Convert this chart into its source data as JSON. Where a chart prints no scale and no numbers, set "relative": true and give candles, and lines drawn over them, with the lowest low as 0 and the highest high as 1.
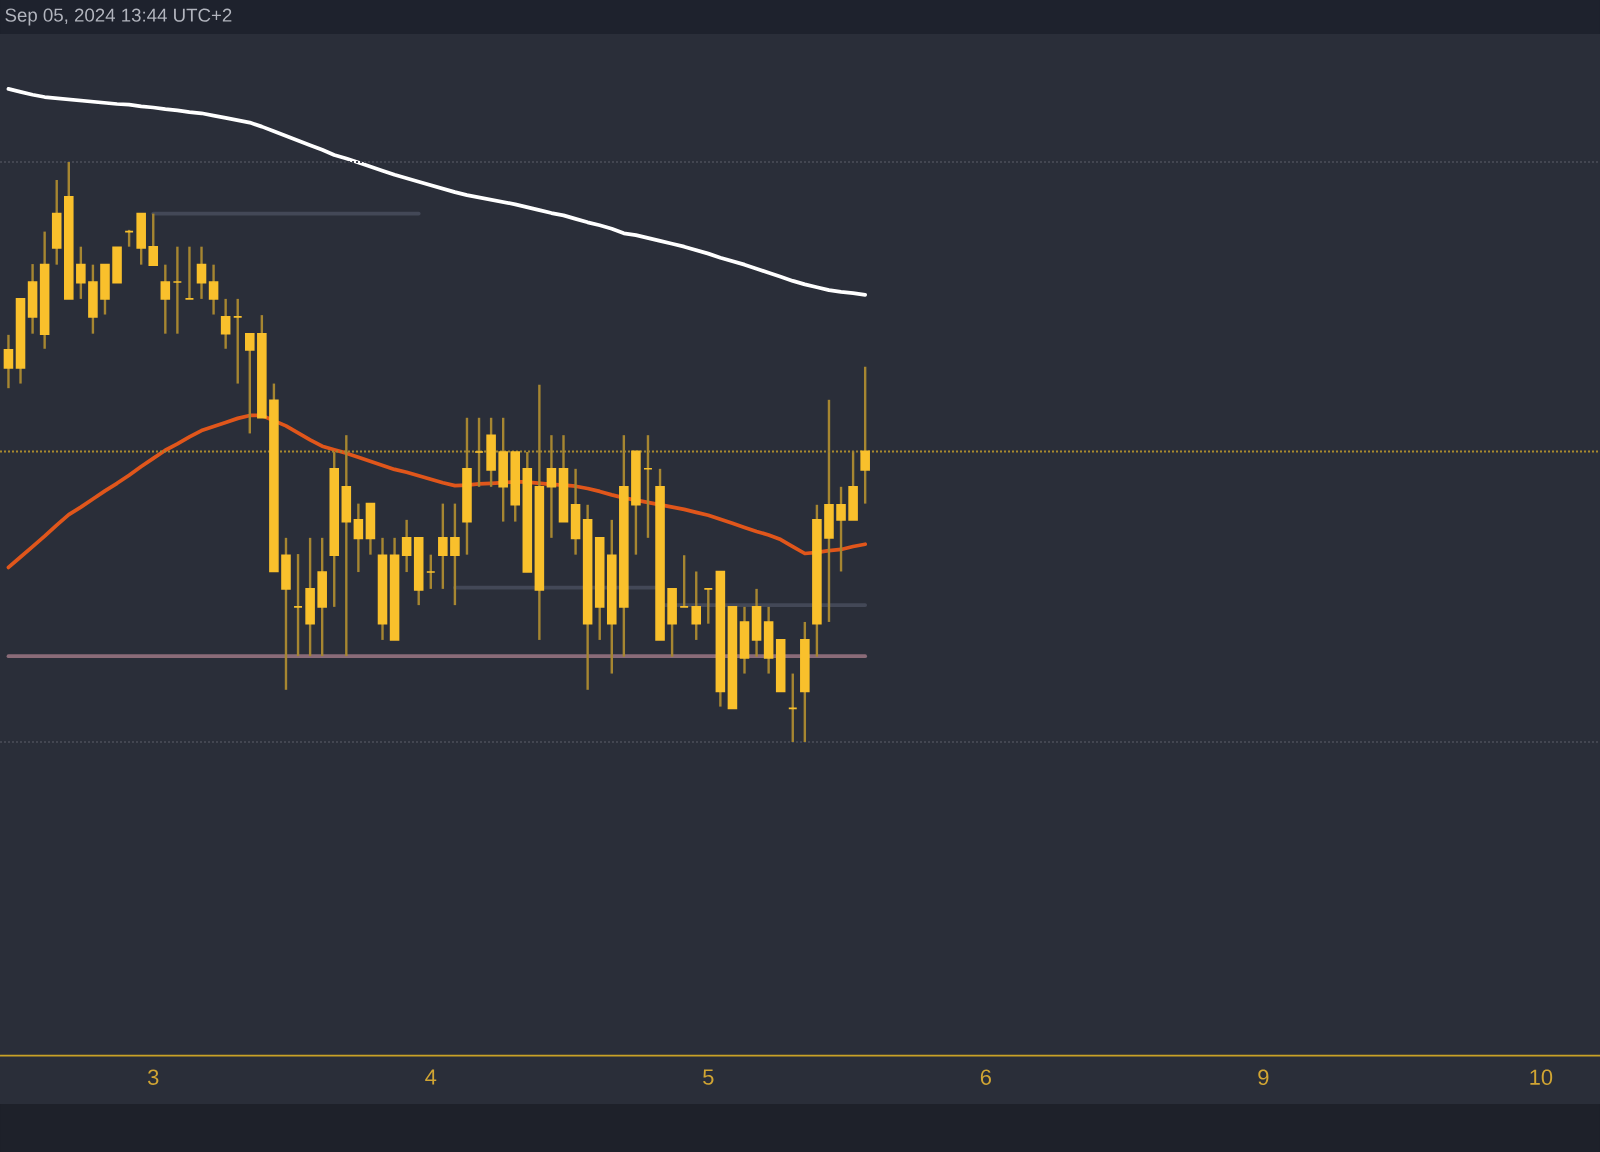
{
  "chart_data": {
    "type": "candlestick",
    "relative": true,
    "annotations": [
      "Sep 05, 2024 13:44 UTC+2"
    ],
    "color": "#f9c02c",
    "categories": [
      null,
      null,
      null,
      null,
      null,
      null,
      null,
      null,
      null,
      null,
      null,
      null,
      "3",
      null,
      null,
      null,
      null,
      null,
      null,
      null,
      null,
      null,
      null,
      null,
      null,
      null,
      null,
      null,
      null,
      null,
      null,
      null,
      null,
      null,
      null,
      "4",
      null,
      null,
      null,
      null,
      null,
      null,
      null,
      null,
      null,
      null,
      null,
      null,
      null,
      null,
      null,
      null,
      null,
      null,
      null,
      null,
      null,
      null,
      "5",
      null,
      null,
      null,
      null,
      null,
      null,
      null,
      null,
      null,
      null,
      null,
      null,
      null,
      null,
      null,
      null,
      null,
      null,
      null,
      null,
      null,
      null,
      "6",
      null,
      null,
      null,
      null,
      null,
      null,
      null,
      null,
      null,
      null,
      null,
      null,
      null,
      null,
      null,
      null,
      null,
      null,
      null,
      null,
      null,
      null,
      "9",
      null,
      null,
      null,
      null,
      null,
      null,
      null,
      null,
      null,
      null,
      null,
      null,
      null,
      null,
      null,
      null,
      null,
      null,
      null,
      null,
      null,
      null,
      "10",
      null,
      null,
      null,
      null
    ],
    "ohlc": [
      [
        0.645,
        0.702,
        0.61,
        0.676
      ],
      [
        0.645,
        0.764,
        0.618,
        0.764
      ],
      [
        0.733,
        0.824,
        0.704,
        0.793
      ],
      [
        0.703,
        0.88,
        0.678,
        0.823
      ],
      [
        0.852,
        0.969,
        0.823,
        0.911
      ],
      [
        0.764,
        1.0,
        0.764,
        0.94
      ],
      [
        0.792,
        0.854,
        0.764,
        0.823
      ],
      [
        0.733,
        0.823,
        0.704,
        0.793
      ],
      [
        0.764,
        0.823,
        0.737,
        0.823
      ],
      [
        0.792,
        0.853,
        0.792,
        0.853
      ],
      [
        0.88,
        0.883,
        0.854,
        0.88
      ],
      [
        0.852,
        0.911,
        0.823,
        0.911
      ],
      [
        0.822,
        0.911,
        0.822,
        0.854
      ],
      [
        0.764,
        0.823,
        0.704,
        0.793
      ],
      [
        0.793,
        0.854,
        0.704,
        0.793
      ],
      [
        0.764,
        0.854,
        0.764,
        0.764
      ],
      [
        0.792,
        0.854,
        0.764,
        0.823
      ],
      [
        0.764,
        0.823,
        0.737,
        0.793
      ],
      [
        0.704,
        0.764,
        0.678,
        0.733
      ],
      [
        0.733,
        0.764,
        0.618,
        0.733
      ],
      [
        0.676,
        0.704,
        0.532,
        0.704
      ],
      [
        0.559,
        0.736,
        0.559,
        0.704
      ],
      [
        0.294,
        0.618,
        0.294,
        0.589
      ],
      [
        0.264,
        0.352,
        0.09,
        0.322
      ],
      [
        0.233,
        0.324,
        0.148,
        0.233
      ],
      [
        0.204,
        0.352,
        0.148,
        0.264
      ],
      [
        0.233,
        0.352,
        0.148,
        0.293
      ],
      [
        0.322,
        0.5,
        0.233,
        0.471
      ],
      [
        0.38,
        0.529,
        0.148,
        0.44
      ],
      [
        0.351,
        0.411,
        0.293,
        0.383
      ],
      [
        0.351,
        0.411,
        0.323,
        0.411
      ],
      [
        0.204,
        0.352,
        0.176,
        0.322
      ],
      [
        0.176,
        0.352,
        0.176,
        0.322
      ],
      [
        0.322,
        0.383,
        0.293,
        0.352
      ],
      [
        0.262,
        0.352,
        0.236,
        0.352
      ],
      [
        0.293,
        0.323,
        0.264,
        0.293
      ],
      [
        0.322,
        0.411,
        0.264,
        0.352
      ],
      [
        0.322,
        0.411,
        0.236,
        0.352
      ],
      [
        0.38,
        0.559,
        0.323,
        0.471
      ],
      [
        0.5,
        0.559,
        0.44,
        0.5
      ],
      [
        0.469,
        0.559,
        0.44,
        0.529
      ],
      [
        0.44,
        0.559,
        0.38,
        0.5
      ],
      [
        0.409,
        0.5,
        0.38,
        0.5
      ],
      [
        0.293,
        0.5,
        0.293,
        0.471
      ],
      [
        0.262,
        0.616,
        0.176,
        0.44
      ],
      [
        0.44,
        0.529,
        0.352,
        0.471
      ],
      [
        0.38,
        0.529,
        0.38,
        0.471
      ],
      [
        0.351,
        0.471,
        0.323,
        0.409
      ],
      [
        0.204,
        0.409,
        0.09,
        0.383
      ],
      [
        0.233,
        0.352,
        0.176,
        0.352
      ],
      [
        0.204,
        0.383,
        0.118,
        0.322
      ],
      [
        0.233,
        0.529,
        0.147,
        0.44
      ],
      [
        0.409,
        0.501,
        0.323,
        0.501
      ],
      [
        0.471,
        0.529,
        0.352,
        0.471
      ],
      [
        0.176,
        0.471,
        0.176,
        0.44
      ],
      [
        0.204,
        0.264,
        0.147,
        0.264
      ],
      [
        0.233,
        0.322,
        0.233,
        0.233
      ],
      [
        0.204,
        0.294,
        0.176,
        0.233
      ],
      [
        0.264,
        0.264,
        0.204,
        0.264
      ],
      [
        0.087,
        0.294,
        0.061,
        0.294
      ],
      [
        0.058,
        0.233,
        0.058,
        0.233
      ],
      [
        0.145,
        0.233,
        0.118,
        0.207
      ],
      [
        0.176,
        0.264,
        0.147,
        0.233
      ],
      [
        0.145,
        0.233,
        0.118,
        0.207
      ],
      [
        0.087,
        0.176,
        0.087,
        0.176
      ],
      [
        0.058,
        0.118,
        0,
        0.058
      ],
      [
        0.087,
        0.207,
        0,
        0.176
      ],
      [
        0.204,
        0.409,
        0.147,
        0.383
      ],
      [
        0.352,
        0.59,
        0.207,
        0.409
      ],
      [
        0.383,
        0.44,
        0.294,
        0.409
      ],
      [
        0.383,
        0.501,
        0.383,
        0.44
      ],
      [
        0.469,
        0.647,
        0.411,
        0.501
      ],
      null,
      null,
      null,
      null,
      null,
      null,
      null,
      null,
      null,
      null,
      null,
      null,
      null,
      null,
      null,
      null,
      null,
      null,
      null,
      null,
      null,
      null,
      null,
      null,
      null,
      null,
      null,
      null,
      null,
      null,
      null,
      null,
      null,
      null,
      null,
      null,
      null,
      null,
      null,
      null,
      null,
      null,
      null,
      null,
      null,
      null,
      null,
      null,
      null,
      null,
      null,
      null,
      null,
      null,
      null,
      null,
      null,
      null,
      null,
      null
    ],
    "series": [
      {
        "type": "line",
        "color": "#ffffff",
        "values": [
          1.126,
          1.121,
          1.116,
          1.112,
          1.11,
          1.108,
          1.106,
          1.104,
          1.102,
          1.1,
          1.099,
          1.096,
          1.094,
          1.091,
          1.089,
          1.086,
          1.084,
          1.08,
          1.076,
          1.072,
          1.068,
          1.061,
          1.053,
          1.045,
          1.037,
          1.029,
          1.021,
          1.012,
          1.006,
          0.999,
          0.992,
          0.985,
          0.978,
          0.972,
          0.966,
          0.96,
          0.954,
          0.948,
          0.943,
          0.939,
          0.935,
          0.931,
          0.927,
          0.922,
          0.917,
          0.912,
          0.908,
          0.902,
          0.896,
          0.891,
          0.885,
          0.877,
          0.874,
          0.869,
          0.864,
          0.859,
          0.854,
          0.848,
          0.842,
          0.835,
          0.829,
          0.823,
          0.816,
          0.809,
          0.802,
          0.795,
          0.789,
          0.784,
          0.779,
          0.776,
          0.774,
          0.771,
          null,
          null,
          null,
          null,
          null,
          null,
          null,
          null,
          null,
          null,
          null,
          null,
          null,
          null,
          null,
          null,
          null,
          null,
          null,
          null,
          null,
          null,
          null,
          null,
          null,
          null,
          null,
          null,
          null,
          null,
          null,
          null,
          null,
          null,
          null,
          null,
          null,
          null,
          null,
          null,
          null,
          null,
          null,
          null,
          null,
          null,
          null,
          null,
          null,
          null,
          null,
          null,
          null,
          null,
          null,
          null,
          null,
          null,
          null,
          null
        ]
      },
      {
        "type": "line",
        "color": "#e0561b",
        "values": [
          0.301,
          0.319,
          0.337,
          0.355,
          0.374,
          0.392,
          0.405,
          0.419,
          0.433,
          0.446,
          0.46,
          0.475,
          0.489,
          0.503,
          0.514,
          0.526,
          0.537,
          0.544,
          0.551,
          0.558,
          0.563,
          0.563,
          0.554,
          0.545,
          0.533,
          0.521,
          0.51,
          0.504,
          0.498,
          0.491,
          0.484,
          0.477,
          0.47,
          0.465,
          0.459,
          0.453,
          0.447,
          0.442,
          0.443,
          0.445,
          0.446,
          0.447,
          0.449,
          0.448,
          0.446,
          0.444,
          0.443,
          0.441,
          0.437,
          0.432,
          0.426,
          0.421,
          0.417,
          0.413,
          0.409,
          0.405,
          0.401,
          0.396,
          0.391,
          0.384,
          0.377,
          0.37,
          0.363,
          0.357,
          0.349,
          0.337,
          0.325,
          0.327,
          0.33,
          0.332,
          0.337,
          0.341,
          null,
          null,
          null,
          null,
          null,
          null,
          null,
          null,
          null,
          null,
          null,
          null,
          null,
          null,
          null,
          null,
          null,
          null,
          null,
          null,
          null,
          null,
          null,
          null,
          null,
          null,
          null,
          null,
          null,
          null,
          null,
          null,
          null,
          null,
          null,
          null,
          null,
          null,
          null,
          null,
          null,
          null,
          null,
          null,
          null,
          null,
          null,
          null,
          null,
          null,
          null,
          null,
          null,
          null,
          null,
          null,
          null,
          null,
          null,
          null
        ]
      },
      {
        "type": "line",
        "color": "#8a6b78",
        "values": [
          0.148,
          0.148,
          0.148,
          0.148,
          0.148,
          0.148,
          0.148,
          0.148,
          0.148,
          0.148,
          0.148,
          0.148,
          0.148,
          0.148,
          0.148,
          0.148,
          0.148,
          0.148,
          0.148,
          0.148,
          0.148,
          0.148,
          0.148,
          0.148,
          0.148,
          0.148,
          0.148,
          0.148,
          0.148,
          0.148,
          0.148,
          0.148,
          0.148,
          0.148,
          0.148,
          0.148,
          0.148,
          0.148,
          0.148,
          0.148,
          0.148,
          0.148,
          0.148,
          0.148,
          0.148,
          0.148,
          0.148,
          0.148,
          0.148,
          0.148,
          0.148,
          0.148,
          0.148,
          0.148,
          0.148,
          0.148,
          0.148,
          0.148,
          0.148,
          0.148,
          0.148,
          0.148,
          0.148,
          0.148,
          0.148,
          0.148,
          0.148,
          0.148,
          0.148,
          0.148,
          0.148,
          0.148,
          null,
          null,
          null,
          null,
          null,
          null,
          null,
          null,
          null,
          null,
          null,
          null,
          null,
          null,
          null,
          null,
          null,
          null,
          null,
          null,
          null,
          null,
          null,
          null,
          null,
          null,
          null,
          null,
          null,
          null,
          null,
          null,
          null,
          null,
          null,
          null,
          null,
          null,
          null,
          null,
          null,
          null,
          null,
          null,
          null,
          null,
          null,
          null,
          null,
          null,
          null,
          null,
          null,
          null,
          null,
          null,
          null,
          null,
          null,
          null
        ]
      },
      {
        "type": "line",
        "color": "#434857",
        "values": [
          null,
          null,
          null,
          null,
          null,
          null,
          null,
          null,
          null,
          null,
          null,
          null,
          0.911,
          0.911,
          0.911,
          0.911,
          0.911,
          0.911,
          0.911,
          0.911,
          0.911,
          0.911,
          0.911,
          0.911,
          0.911,
          0.911,
          0.911,
          0.911,
          0.911,
          0.911,
          0.911,
          0.911,
          0.911,
          0.911,
          0.911,
          null,
          null,
          null,
          null,
          null,
          null,
          null,
          null,
          null,
          null,
          null,
          null,
          null,
          null,
          null,
          null,
          null,
          null,
          null,
          null,
          null,
          null,
          null,
          null,
          null,
          null,
          null,
          null,
          null,
          null,
          null,
          null,
          null,
          null,
          null,
          null,
          null,
          null,
          null,
          null,
          null,
          null,
          null,
          null,
          null,
          null,
          null,
          null,
          null,
          null,
          null,
          null,
          null,
          null,
          null,
          null,
          null,
          null,
          null,
          null,
          null,
          null,
          null,
          null,
          null,
          null,
          null,
          null,
          null,
          null,
          null,
          null,
          null,
          null,
          null,
          null,
          null,
          null,
          null,
          null,
          null,
          null,
          null,
          null,
          null,
          null,
          null,
          null,
          null,
          null,
          null,
          null,
          null,
          null,
          null,
          null,
          null
        ]
      },
      {
        "type": "line",
        "color": "#434857",
        "values": [
          null,
          null,
          null,
          null,
          null,
          null,
          null,
          null,
          null,
          null,
          null,
          null,
          null,
          null,
          null,
          null,
          null,
          null,
          null,
          null,
          null,
          null,
          null,
          null,
          null,
          null,
          null,
          null,
          null,
          null,
          null,
          null,
          null,
          null,
          null,
          null,
          null,
          0.266,
          0.266,
          0.266,
          0.266,
          0.266,
          0.266,
          0.266,
          0.266,
          0.266,
          0.266,
          0.266,
          0.266,
          0.266,
          0.266,
          0.266,
          0.266,
          0.266,
          0.266,
          null,
          null,
          null,
          null,
          null,
          null,
          null,
          null,
          null,
          null,
          null,
          null,
          null,
          null,
          null,
          null,
          null,
          null,
          null,
          null,
          null,
          null,
          null,
          null,
          null,
          null,
          null,
          null,
          null,
          null,
          null,
          null,
          null,
          null,
          null,
          null,
          null,
          null,
          null,
          null,
          null,
          null,
          null,
          null,
          null,
          null,
          null,
          null,
          null,
          null,
          null,
          null,
          null,
          null,
          null,
          null,
          null,
          null,
          null,
          null,
          null,
          null,
          null,
          null,
          null,
          null,
          null,
          null,
          null,
          null,
          null,
          null,
          null,
          null,
          null,
          null,
          null
        ]
      },
      {
        "type": "line",
        "color": "#434857",
        "values": [
          null,
          null,
          null,
          null,
          null,
          null,
          null,
          null,
          null,
          null,
          null,
          null,
          null,
          null,
          null,
          null,
          null,
          null,
          null,
          null,
          null,
          null,
          null,
          null,
          null,
          null,
          null,
          null,
          null,
          null,
          null,
          null,
          null,
          null,
          null,
          null,
          null,
          null,
          null,
          null,
          null,
          null,
          null,
          null,
          null,
          null,
          null,
          null,
          null,
          null,
          null,
          null,
          null,
          null,
          0.236,
          0.236,
          0.236,
          0.236,
          0.236,
          0.236,
          0.236,
          0.236,
          0.236,
          0.236,
          0.236,
          0.236,
          0.236,
          0.236,
          0.236,
          0.236,
          0.236,
          0.236,
          null,
          null,
          null,
          null,
          null,
          null,
          null,
          null,
          null,
          null,
          null,
          null,
          null,
          null,
          null,
          null,
          null,
          null,
          null,
          null,
          null,
          null,
          null,
          null,
          null,
          null,
          null,
          null,
          null,
          null,
          null,
          null,
          null,
          null,
          null,
          null,
          null,
          null,
          null,
          null,
          null,
          null,
          null,
          null,
          null,
          null,
          null,
          null,
          null,
          null,
          null,
          null,
          null,
          null,
          null,
          null,
          null,
          null,
          null,
          null
        ]
      }
    ],
    "ref_lines": [
      {
        "axis": "y",
        "value": 1,
        "color": "#434651",
        "line_style": "dotted"
      },
      {
        "axis": "y",
        "value": 0,
        "color": "#434651",
        "line_style": "dotted"
      },
      {
        "axis": "y",
        "value": 0.501,
        "color": "#a8892f",
        "line_style": "dotted"
      }
    ]
  }
}
